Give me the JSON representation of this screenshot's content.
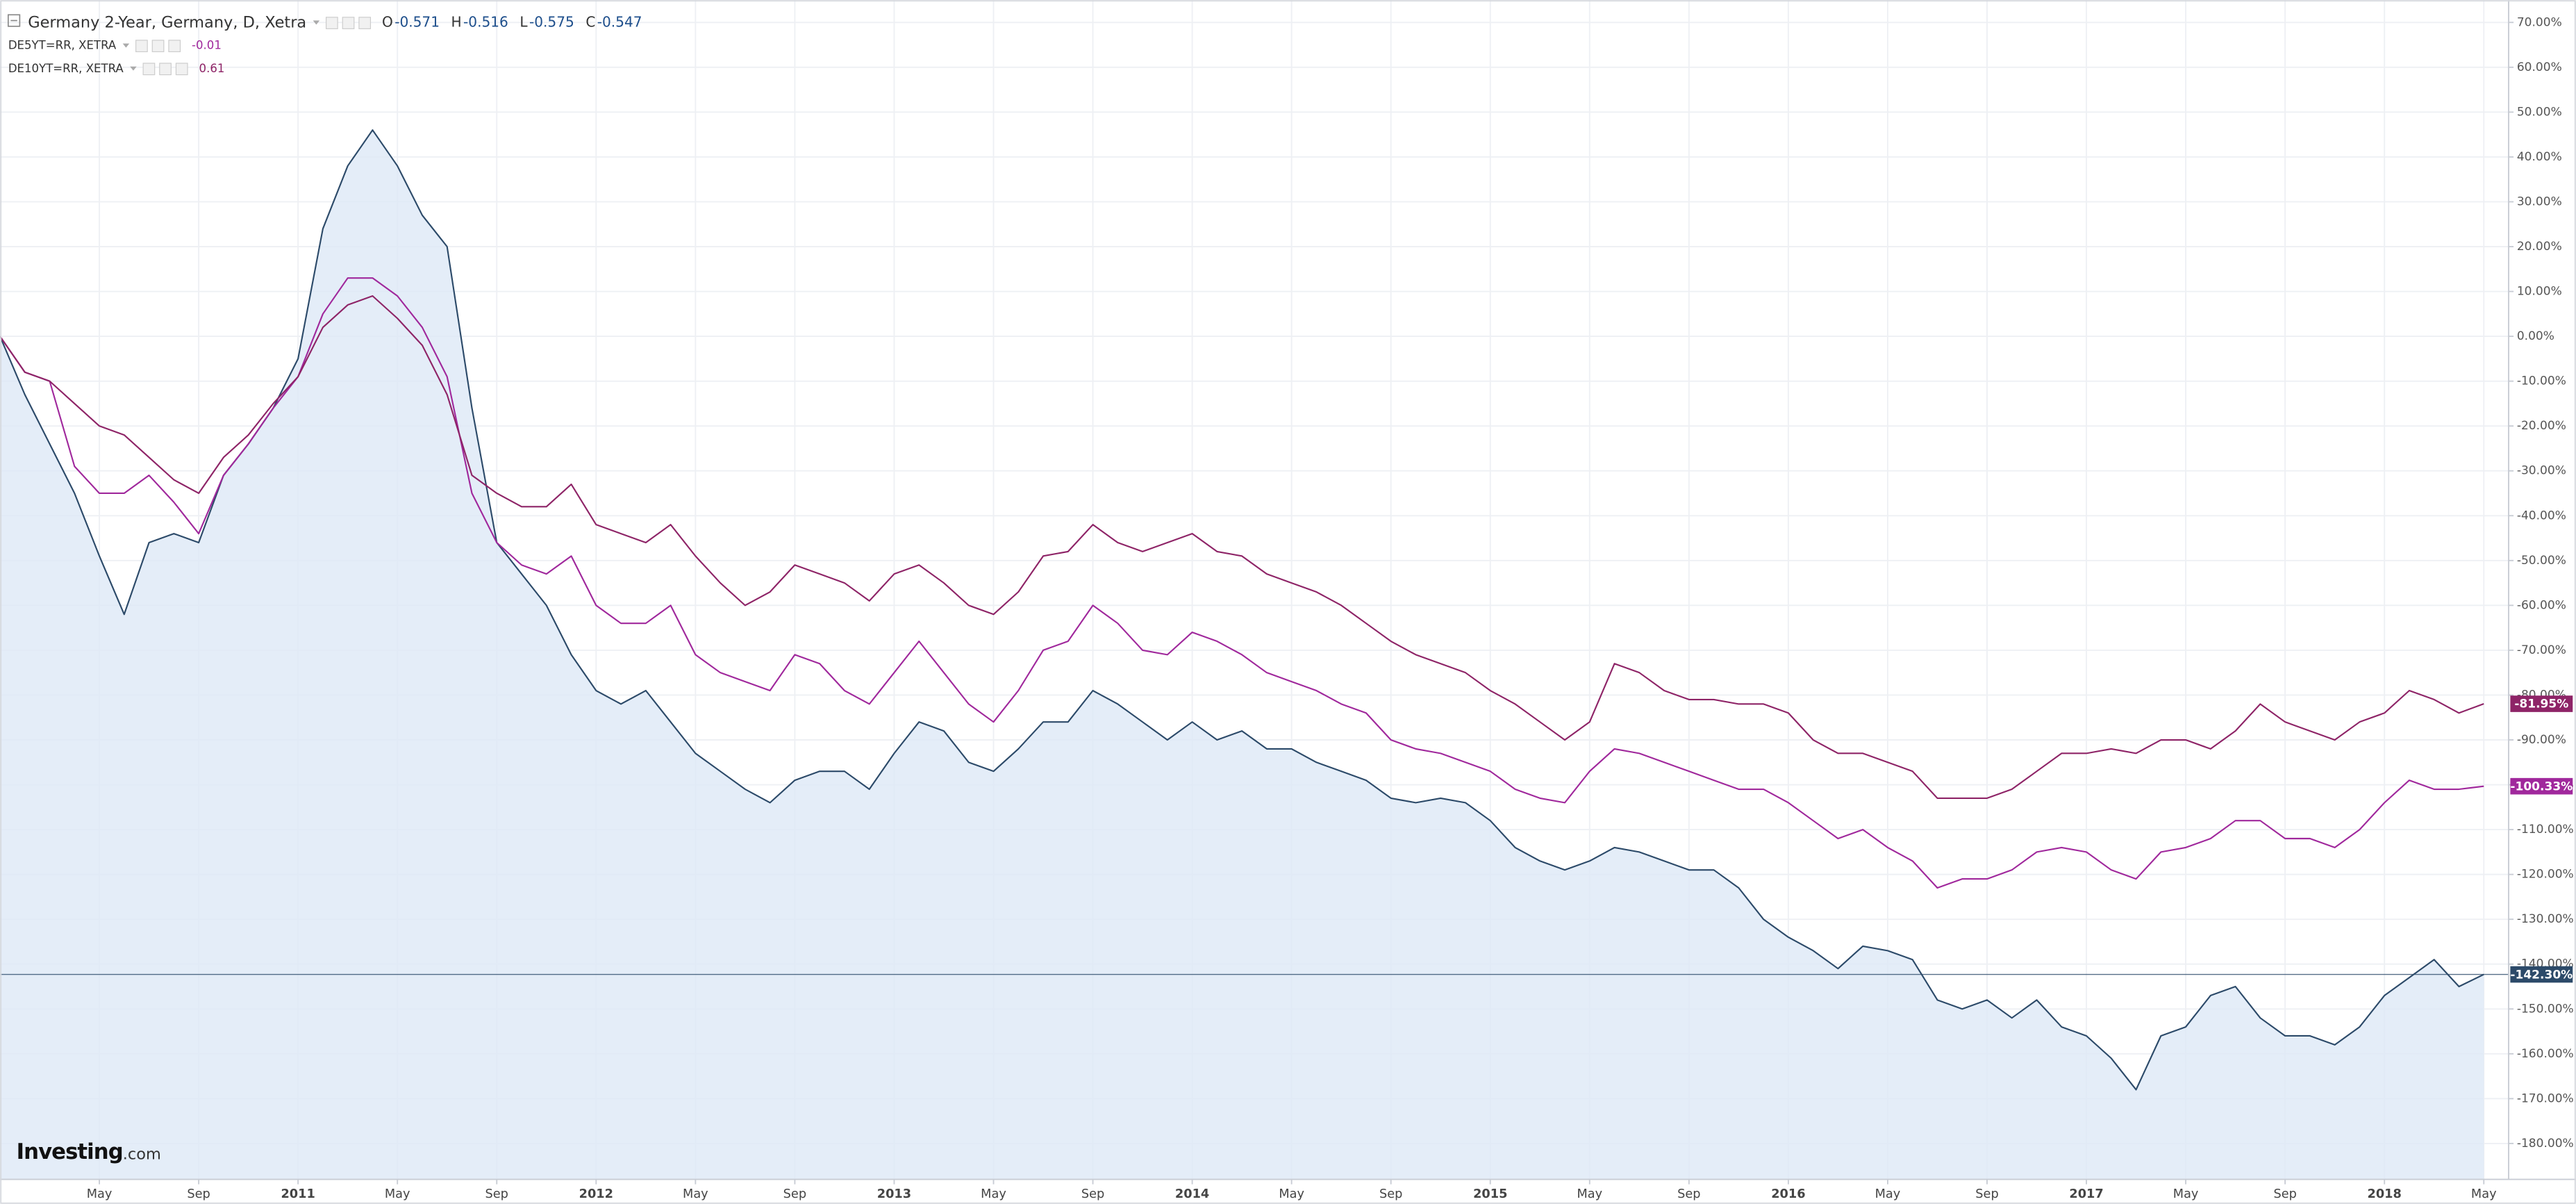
{
  "chart_data": {
    "type": "line",
    "grid": true,
    "x": [
      "2010-01",
      "2010-02",
      "2010-03",
      "2010-04",
      "2010-05",
      "2010-06",
      "2010-07",
      "2010-08",
      "2010-09",
      "2010-10",
      "2010-11",
      "2010-12",
      "2011-01",
      "2011-02",
      "2011-03",
      "2011-04",
      "2011-05",
      "2011-06",
      "2011-07",
      "2011-08",
      "2011-09",
      "2011-10",
      "2011-11",
      "2011-12",
      "2012-01",
      "2012-02",
      "2012-03",
      "2012-04",
      "2012-05",
      "2012-06",
      "2012-07",
      "2012-08",
      "2012-09",
      "2012-10",
      "2012-11",
      "2012-12",
      "2013-01",
      "2013-02",
      "2013-03",
      "2013-04",
      "2013-05",
      "2013-06",
      "2013-07",
      "2013-08",
      "2013-09",
      "2013-10",
      "2013-11",
      "2013-12",
      "2014-01",
      "2014-02",
      "2014-03",
      "2014-04",
      "2014-05",
      "2014-06",
      "2014-07",
      "2014-08",
      "2014-09",
      "2014-10",
      "2014-11",
      "2014-12",
      "2015-01",
      "2015-02",
      "2015-03",
      "2015-04",
      "2015-05",
      "2015-06",
      "2015-07",
      "2015-08",
      "2015-09",
      "2015-10",
      "2015-11",
      "2015-12",
      "2016-01",
      "2016-02",
      "2016-03",
      "2016-04",
      "2016-05",
      "2016-06",
      "2016-07",
      "2016-08",
      "2016-09",
      "2016-10",
      "2016-11",
      "2016-12",
      "2017-01",
      "2017-02",
      "2017-03",
      "2017-04",
      "2017-05",
      "2017-06",
      "2017-07",
      "2017-08",
      "2017-09",
      "2017-10",
      "2017-11",
      "2017-12",
      "2018-01",
      "2018-02",
      "2018-03",
      "2018-04",
      "2018-05"
    ],
    "xlim": [
      "2010-01",
      "2018-06"
    ],
    "xticks": [
      {
        "value": "2010-05",
        "label": "May"
      },
      {
        "value": "2010-09",
        "label": "Sep"
      },
      {
        "value": "2011-01",
        "label": "2011"
      },
      {
        "value": "2011-05",
        "label": "May"
      },
      {
        "value": "2011-09",
        "label": "Sep"
      },
      {
        "value": "2012-01",
        "label": "2012"
      },
      {
        "value": "2012-05",
        "label": "May"
      },
      {
        "value": "2012-09",
        "label": "Sep"
      },
      {
        "value": "2013-01",
        "label": "2013"
      },
      {
        "value": "2013-05",
        "label": "May"
      },
      {
        "value": "2013-09",
        "label": "Sep"
      },
      {
        "value": "2014-01",
        "label": "2014"
      },
      {
        "value": "2014-05",
        "label": "May"
      },
      {
        "value": "2014-09",
        "label": "Sep"
      },
      {
        "value": "2015-01",
        "label": "2015"
      },
      {
        "value": "2015-05",
        "label": "May"
      },
      {
        "value": "2015-09",
        "label": "Sep"
      },
      {
        "value": "2016-01",
        "label": "2016"
      },
      {
        "value": "2016-05",
        "label": "May"
      },
      {
        "value": "2016-09",
        "label": "Sep"
      },
      {
        "value": "2017-01",
        "label": "2017"
      },
      {
        "value": "2017-05",
        "label": "May"
      },
      {
        "value": "2017-09",
        "label": "Sep"
      },
      {
        "value": "2018-01",
        "label": "2018"
      },
      {
        "value": "2018-05",
        "label": "May"
      }
    ],
    "ylim": [
      -188,
      75
    ],
    "yticks": [
      {
        "value": 70,
        "label": "70.00%"
      },
      {
        "value": 60,
        "label": "60.00%"
      },
      {
        "value": 50,
        "label": "50.00%"
      },
      {
        "value": 40,
        "label": "40.00%"
      },
      {
        "value": 30,
        "label": "30.00%"
      },
      {
        "value": 20,
        "label": "20.00%"
      },
      {
        "value": 10,
        "label": "10.00%"
      },
      {
        "value": 0,
        "label": "0.00%"
      },
      {
        "value": -10,
        "label": "-10.00%"
      },
      {
        "value": -20,
        "label": "-20.00%"
      },
      {
        "value": -30,
        "label": "-30.00%"
      },
      {
        "value": -40,
        "label": "-40.00%"
      },
      {
        "value": -50,
        "label": "-50.00%"
      },
      {
        "value": -60,
        "label": "-60.00%"
      },
      {
        "value": -70,
        "label": "-70.00%"
      },
      {
        "value": -80,
        "label": "-80.00%"
      },
      {
        "value": -90,
        "label": "-90.00%"
      },
      {
        "value": -100,
        "label": "-100.00%"
      },
      {
        "value": -110,
        "label": "-110.00%"
      },
      {
        "value": -120,
        "label": "-120.00%"
      },
      {
        "value": -130,
        "label": "-130.00%"
      },
      {
        "value": -140,
        "label": "-140.00%"
      },
      {
        "value": -150,
        "label": "-150.00%"
      },
      {
        "value": -160,
        "label": "-160.00%"
      },
      {
        "value": -170,
        "label": "-170.00%"
      },
      {
        "value": -180,
        "label": "-180.00%"
      }
    ],
    "series": [
      {
        "name": "Germany 2-Year, Germany, D, Xetra",
        "color": "#2c4a69",
        "fill": "#dde9f6",
        "ohlc": [
          {
            "label": "O",
            "value": -0.571
          },
          {
            "label": "H",
            "value": -0.516
          },
          {
            "label": "L",
            "value": -0.575
          },
          {
            "label": "C",
            "value": -0.547
          }
        ],
        "last_value_label": "-142.30%",
        "values": [
          0,
          -13,
          -24,
          -35,
          -49,
          -62,
          -46,
          -44,
          -46,
          -31,
          -24,
          -16,
          -5,
          24,
          38,
          46,
          38,
          27,
          20,
          -16,
          -46,
          -53,
          -60,
          -71,
          -79,
          -82,
          -79,
          -86,
          -93,
          -97,
          -101,
          -104,
          -99,
          -97,
          -97,
          -101,
          -93,
          -86,
          -88,
          -95,
          -97,
          -92,
          -86,
          -86,
          -79,
          -82,
          -86,
          -90,
          -86,
          -90,
          -88,
          -92,
          -92,
          -95,
          -97,
          -99,
          -103,
          -104,
          -103,
          -104,
          -108,
          -114,
          -117,
          -119,
          -117,
          -114,
          -115,
          -117,
          -119,
          -119,
          -123,
          -130,
          -134,
          -137,
          -141,
          -136,
          -137,
          -139,
          -148,
          -150,
          -148,
          -152,
          -148,
          -154,
          -156,
          -161,
          -168,
          -156,
          -154,
          -147,
          -145,
          -152,
          -156,
          -156,
          -158,
          -154,
          -147,
          -143,
          -139,
          -145,
          -142.3
        ]
      },
      {
        "name": "DE5YT=RR, XETRA",
        "color": "#a0289c",
        "legend_value": -0.01,
        "last_value_label": "-100.33%",
        "values": [
          0,
          -8,
          -10,
          -29,
          -35,
          -35,
          -31,
          -37,
          -44,
          -31,
          -24,
          -16,
          -9,
          5,
          13,
          13,
          9,
          2,
          -9,
          -35,
          -46,
          -51,
          -53,
          -49,
          -60,
          -64,
          -64,
          -60,
          -71,
          -75,
          -77,
          -79,
          -71,
          -73,
          -79,
          -82,
          -75,
          -68,
          -75,
          -82,
          -86,
          -79,
          -70,
          -68,
          -60,
          -64,
          -70,
          -71,
          -66,
          -68,
          -71,
          -75,
          -77,
          -79,
          -82,
          -84,
          -90,
          -92,
          -93,
          -95,
          -97,
          -101,
          -103,
          -104,
          -97,
          -92,
          -93,
          -95,
          -97,
          -99,
          -101,
          -101,
          -104,
          -108,
          -112,
          -110,
          -114,
          -117,
          -123,
          -121,
          -121,
          -119,
          -115,
          -114,
          -115,
          -119,
          -121,
          -115,
          -114,
          -112,
          -108,
          -108,
          -112,
          -112,
          -114,
          -110,
          -104,
          -99,
          -101,
          -101,
          -100.33
        ]
      },
      {
        "name": "DE10YT=RR, XETRA",
        "color": "#8e2467",
        "legend_value": 0.61,
        "last_value_label": "-81.95%",
        "values": [
          0,
          -8,
          -10,
          -15,
          -20,
          -22,
          -27,
          -32,
          -35,
          -27,
          -22,
          -15,
          -9,
          2,
          7,
          9,
          4,
          -2,
          -13,
          -31,
          -35,
          -38,
          -38,
          -33,
          -42,
          -44,
          -46,
          -42,
          -49,
          -55,
          -60,
          -57,
          -51,
          -53,
          -55,
          -59,
          -53,
          -51,
          -55,
          -60,
          -62,
          -57,
          -49,
          -48,
          -42,
          -46,
          -48,
          -46,
          -44,
          -48,
          -49,
          -53,
          -55,
          -57,
          -60,
          -64,
          -68,
          -71,
          -73,
          -75,
          -79,
          -82,
          -86,
          -90,
          -86,
          -73,
          -75,
          -79,
          -81,
          -81,
          -82,
          -82,
          -84,
          -90,
          -93,
          -93,
          -95,
          -97,
          -103,
          -103,
          -103,
          -101,
          -97,
          -93,
          -93,
          -92,
          -93,
          -90,
          -90,
          -92,
          -88,
          -82,
          -86,
          -88,
          -90,
          -86,
          -84,
          -79,
          -81,
          -84,
          -81.95
        ]
      }
    ],
    "watermark": [
      "Investing",
      ".com"
    ]
  }
}
